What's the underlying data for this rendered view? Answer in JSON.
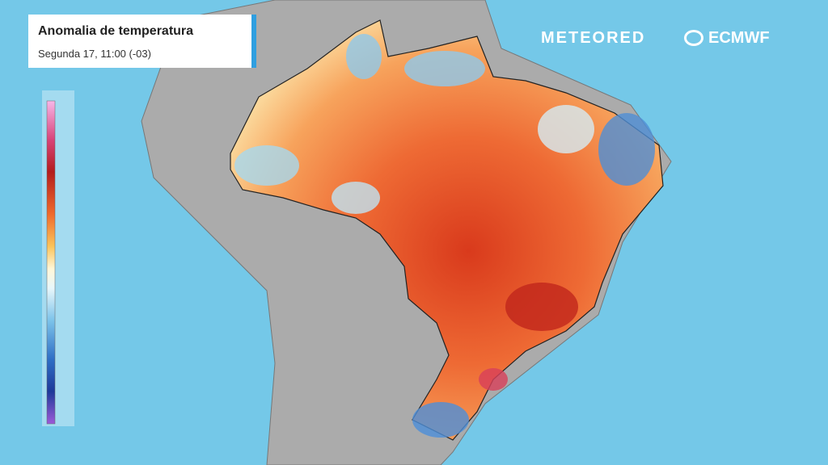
{
  "header": {
    "title": "Anomalia de temperatura",
    "subtitle": "Segunda 17, 11:00 (-03)"
  },
  "logos": {
    "meteored": "METEORED",
    "ecmwf": "ECMWF"
  }
}
